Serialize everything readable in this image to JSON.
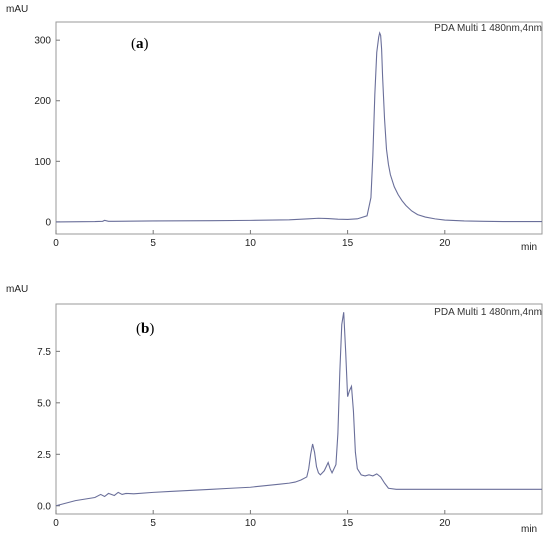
{
  "chart_data": [
    {
      "type": "line",
      "panel_label": {
        "open": "(",
        "letter": "a",
        "close": ")"
      },
      "legend": "PDA Multi 1 480nm,4nm",
      "ylabel": "mAU",
      "xlabel": "min",
      "xlim": [
        0,
        25
      ],
      "ylim": [
        -20,
        330
      ],
      "xticks": [
        0,
        5,
        10,
        15,
        20
      ],
      "yticks": [
        0,
        100,
        200,
        300
      ],
      "xtick_labels": [
        "0",
        "5",
        "10",
        "15",
        "20"
      ],
      "ytick_labels": [
        "0",
        "100",
        "200",
        "300"
      ],
      "grid": false,
      "line_color": "#6a6f9a",
      "series": [
        {
          "x": [
            0,
            2,
            2.4,
            2.5,
            2.7,
            3,
            5,
            8,
            10,
            12,
            13,
            13.5,
            14,
            14.5,
            15,
            15.5,
            16,
            16.2,
            16.3,
            16.4,
            16.5,
            16.6,
            16.65,
            16.7,
            16.75,
            16.8,
            16.9,
            17.0,
            17.1,
            17.2,
            17.4,
            17.6,
            17.8,
            18.0,
            18.3,
            18.6,
            19,
            19.5,
            20,
            21,
            22,
            23,
            24,
            25
          ],
          "y": [
            0,
            0.5,
            1,
            2.5,
            1,
            1,
            1.5,
            2,
            2.5,
            3.5,
            5,
            6,
            5.5,
            4.5,
            4,
            5,
            10,
            40,
            110,
            210,
            280,
            305,
            312,
            308,
            285,
            240,
            170,
            120,
            95,
            78,
            58,
            45,
            35,
            27,
            18,
            12,
            8,
            5,
            3,
            1.5,
            1,
            0.5,
            0.5,
            0.5
          ]
        }
      ]
    },
    {
      "type": "line",
      "panel_label": {
        "open": "(",
        "letter": "b",
        "close": ")"
      },
      "legend": "PDA Multi 1 480nm,4nm",
      "ylabel": "mAU",
      "xlabel": "min",
      "xlim": [
        0,
        25
      ],
      "ylim": [
        -0.4,
        9.8
      ],
      "xticks": [
        0,
        5,
        10,
        15,
        20
      ],
      "yticks": [
        0.0,
        2.5,
        5.0,
        7.5
      ],
      "xtick_labels": [
        "0",
        "5",
        "10",
        "15",
        "20"
      ],
      "ytick_labels": [
        "0.0",
        "2.5",
        "5.0",
        "7.5"
      ],
      "grid": false,
      "line_color": "#6a6f9a",
      "series": [
        {
          "x": [
            0,
            1,
            2,
            2.3,
            2.5,
            2.7,
            3.0,
            3.2,
            3.4,
            3.6,
            4,
            5,
            6,
            7,
            8,
            9,
            10,
            10.5,
            11,
            11.5,
            12,
            12.3,
            12.6,
            12.9,
            13.0,
            13.1,
            13.2,
            13.3,
            13.4,
            13.5,
            13.6,
            13.8,
            14.0,
            14.1,
            14.2,
            14.4,
            14.5,
            14.6,
            14.7,
            14.8,
            14.9,
            15.0,
            15.1,
            15.2,
            15.3,
            15.4,
            15.5,
            15.7,
            15.9,
            16.1,
            16.3,
            16.5,
            16.7,
            16.9,
            17.1,
            17.5,
            18,
            19,
            20,
            22,
            25
          ],
          "y": [
            0.0,
            0.25,
            0.4,
            0.55,
            0.45,
            0.6,
            0.5,
            0.65,
            0.55,
            0.6,
            0.58,
            0.65,
            0.7,
            0.75,
            0.8,
            0.85,
            0.9,
            0.95,
            1.0,
            1.05,
            1.1,
            1.15,
            1.25,
            1.4,
            1.8,
            2.5,
            3.0,
            2.6,
            1.9,
            1.6,
            1.5,
            1.7,
            2.1,
            1.8,
            1.6,
            2.0,
            3.5,
            6.5,
            8.8,
            9.4,
            7.5,
            5.3,
            5.6,
            5.8,
            4.6,
            2.6,
            1.8,
            1.5,
            1.45,
            1.5,
            1.45,
            1.55,
            1.4,
            1.1,
            0.85,
            0.8,
            0.8,
            0.8,
            0.8,
            0.8,
            0.8
          ]
        }
      ]
    }
  ]
}
